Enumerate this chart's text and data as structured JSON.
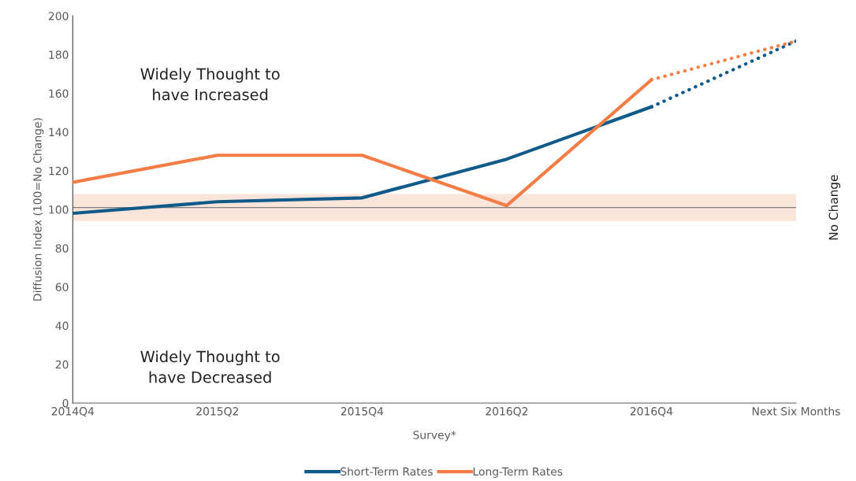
{
  "chart_data": {
    "type": "line",
    "xlabel": "Survey*",
    "ylabel": "Diffusion Index (100=No Change)",
    "categories": [
      "2014Q4",
      "2015Q2",
      "2015Q4",
      "2016Q2",
      "2016Q4",
      "Next Six Months"
    ],
    "series": [
      {
        "name": "Short-Term Rates",
        "color": "#105a8a",
        "values": [
          98,
          104,
          106,
          126,
          153,
          null
        ],
        "line_style": "solid"
      },
      {
        "name": "Long-Term Rates",
        "color": "#f47c45",
        "values": [
          114,
          128,
          128,
          102,
          167,
          null
        ],
        "line_style": "solid"
      },
      {
        "color": "#105a8a",
        "values": [
          null,
          null,
          null,
          null,
          153,
          187
        ],
        "line_style": "dotted"
      },
      {
        "color": "#f47c45",
        "values": [
          null,
          null,
          null,
          null,
          167,
          187
        ],
        "line_style": "dotted"
      }
    ],
    "ylim": [
      0,
      200
    ],
    "yticks": [
      0,
      20,
      40,
      60,
      80,
      100,
      120,
      140,
      160,
      180,
      200
    ],
    "ref_lines": [
      {
        "axis": "y",
        "value": 101,
        "label": "No Change",
        "color": "#7f7f7f"
      }
    ],
    "bands": [
      {
        "axis": "y",
        "from": 94,
        "to": 108,
        "color": "#fbe5da"
      }
    ],
    "annotations": [
      "Widely Thought to\nhave Increased",
      "Widely Thought to\nhave Decreased"
    ],
    "grid": false,
    "legend": "bottom",
    "marker": "none"
  }
}
